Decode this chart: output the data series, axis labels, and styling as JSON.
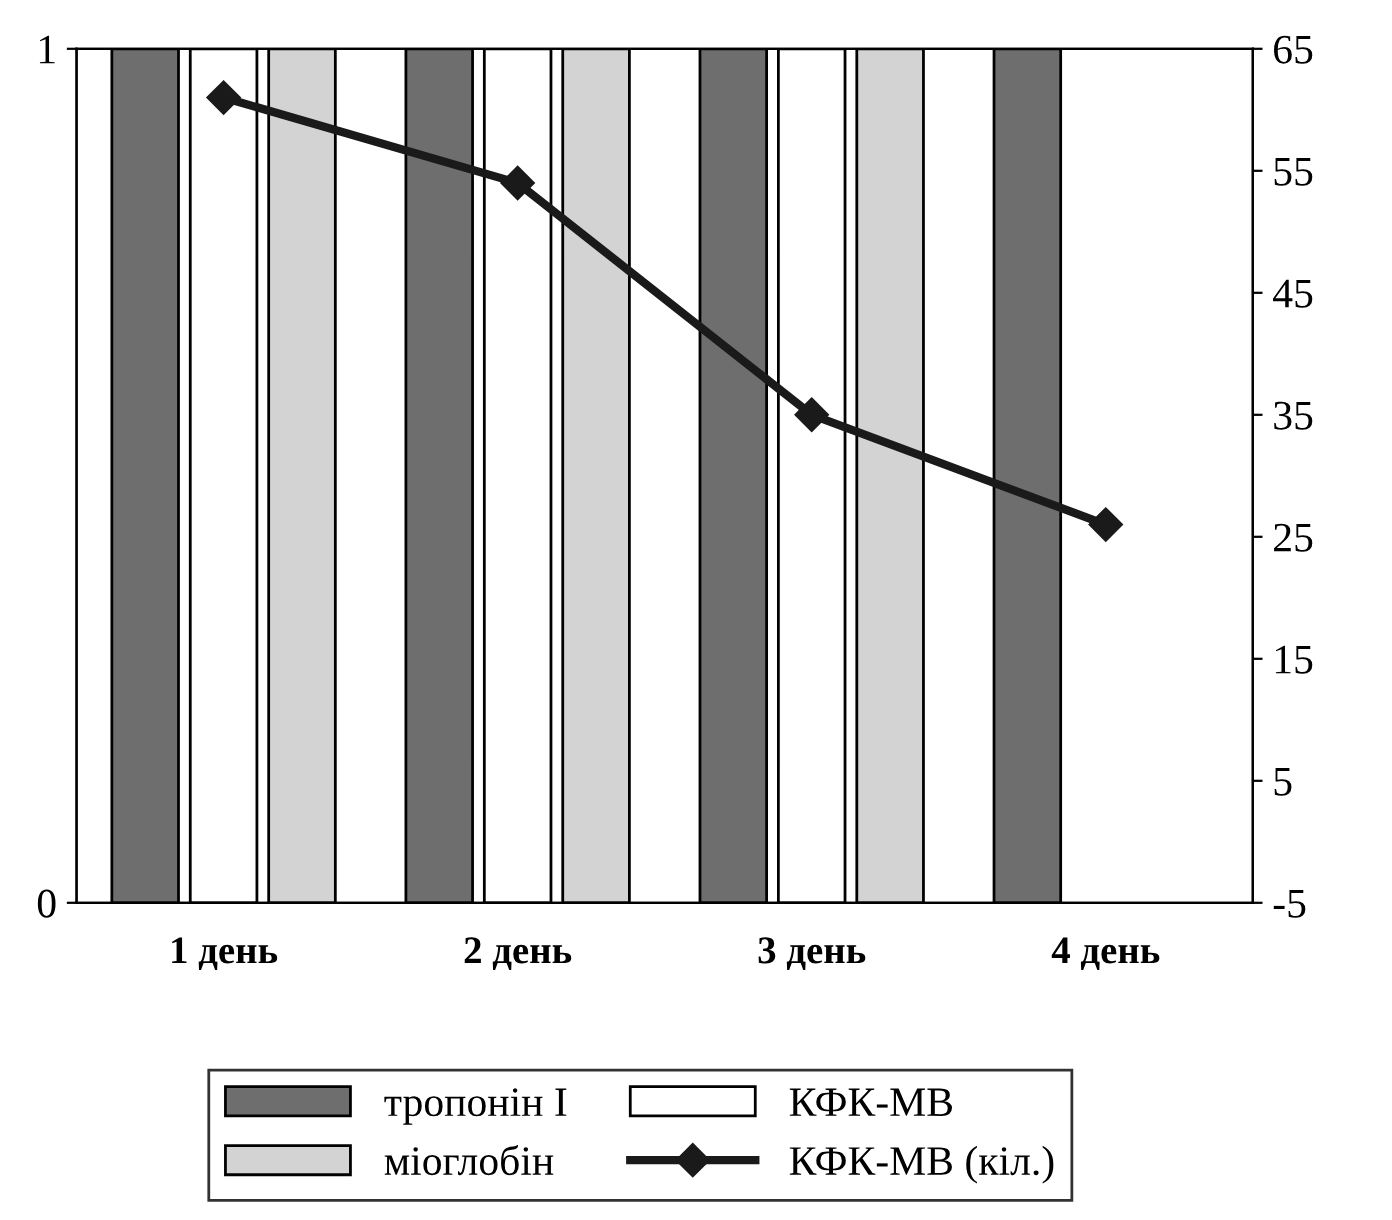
{
  "chart_data": {
    "type": "bar",
    "categories": [
      "1 день",
      "2 день",
      "3 день",
      "4 день"
    ],
    "series": [
      {
        "name": "тропонін I",
        "color": "#6e6e6e",
        "values": [
          1,
          1,
          1,
          1
        ]
      },
      {
        "name": "КФК-МВ",
        "color": "#ffffff",
        "values": [
          1,
          1,
          1,
          null
        ]
      },
      {
        "name": "міоглобін",
        "color": "#d3d3d3",
        "values": [
          1,
          1,
          1,
          null
        ]
      },
      {
        "name": "КФК-МВ (кіл.)",
        "color": "#1a1a1a",
        "type": "line",
        "axis": "y2",
        "marker": "diamond",
        "line_style": "solid",
        "values": [
          61,
          54,
          35,
          26
        ]
      }
    ],
    "ylim": [
      0,
      1
    ],
    "yticks": [
      0,
      1
    ],
    "y2lim": [
      -5,
      65
    ],
    "y2ticks": [
      -5,
      5,
      15,
      25,
      35,
      45,
      55,
      65
    ],
    "grid": false,
    "legend": "bottom"
  }
}
